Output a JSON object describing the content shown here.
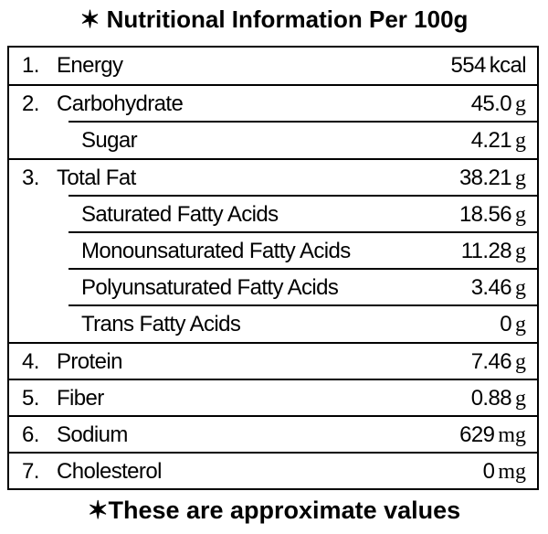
{
  "title": "✶ Nutritional Information Per 100g",
  "rows": [
    {
      "number": "1.",
      "label": "Energy",
      "value": "554",
      "unit": "kcal"
    },
    {
      "number": "2.",
      "label": "Carbohydrate",
      "value": "45.0",
      "unit": "g",
      "subrows": [
        {
          "label": "Sugar",
          "value": "4.21",
          "unit": "g"
        }
      ]
    },
    {
      "number": "3.",
      "label": "Total Fat",
      "value": "38.21",
      "unit": "g",
      "subrows": [
        {
          "label": "Saturated Fatty Acids",
          "value": "18.56",
          "unit": "g"
        },
        {
          "label": "Monounsaturated Fatty Acids",
          "value": "11.28",
          "unit": "g"
        },
        {
          "label": "Polyunsaturated Fatty Acids",
          "value": "3.46",
          "unit": "g"
        },
        {
          "label": "Trans Fatty Acids",
          "value": "0",
          "unit": "g"
        }
      ]
    },
    {
      "number": "4.",
      "label": "Protein",
      "value": "7.46",
      "unit": "g"
    },
    {
      "number": "5.",
      "label": "Fiber",
      "value": "0.88",
      "unit": "g"
    },
    {
      "number": "6.",
      "label": "Sodium",
      "value": "629",
      "unit": "mg"
    },
    {
      "number": "7.",
      "label": "Cholesterol",
      "value": "0",
      "unit": "mg"
    }
  ],
  "footer": "✶These are approximate values"
}
